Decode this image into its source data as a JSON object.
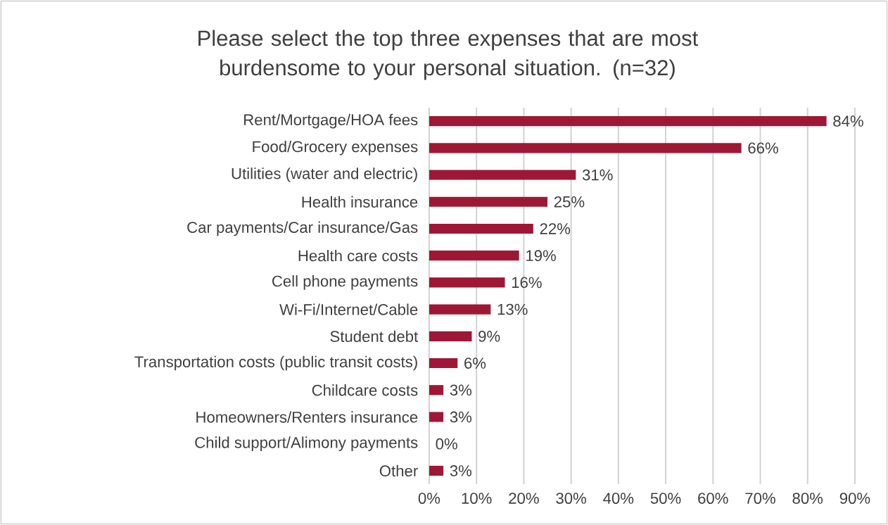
{
  "chart_data": {
    "type": "bar",
    "orientation": "horizontal",
    "title": "Please select the top three expenses that are most burdensome to your personal situation. (n=32)",
    "categories": [
      "Rent/Mortgage/HOA fees",
      "Food/Grocery expenses",
      "Utilities (water and electric)",
      "Health insurance",
      "Car payments/Car insurance/Gas",
      "Health care costs",
      "Cell phone payments",
      "Wi-Fi/Internet/Cable",
      "Student debt",
      "Transportation costs (public transit costs)",
      "Childcare costs",
      "Homeowners/Renters insurance",
      "Child support/Alimony payments",
      "Other"
    ],
    "values": [
      84,
      66,
      31,
      25,
      22,
      19,
      16,
      13,
      9,
      6,
      3,
      3,
      0,
      3
    ],
    "value_labels": [
      "84%",
      "66%",
      "31%",
      "25%",
      "22%",
      "19%",
      "16%",
      "13%",
      "9%",
      "6%",
      "3%",
      "3%",
      "0%",
      "3%"
    ],
    "color": "#9e1836",
    "xlim": [
      0,
      90
    ],
    "xticks": [
      {
        "value": 0,
        "label": "0%"
      },
      {
        "value": 10,
        "label": "10%"
      },
      {
        "value": 20,
        "label": "20%"
      },
      {
        "value": 30,
        "label": "30%"
      },
      {
        "value": 40,
        "label": "40%"
      },
      {
        "value": 50,
        "label": "50%"
      },
      {
        "value": 60,
        "label": "60%"
      },
      {
        "value": 70,
        "label": "70%"
      },
      {
        "value": 80,
        "label": "80%"
      },
      {
        "value": 90,
        "label": "90%"
      }
    ],
    "grid": "x"
  }
}
